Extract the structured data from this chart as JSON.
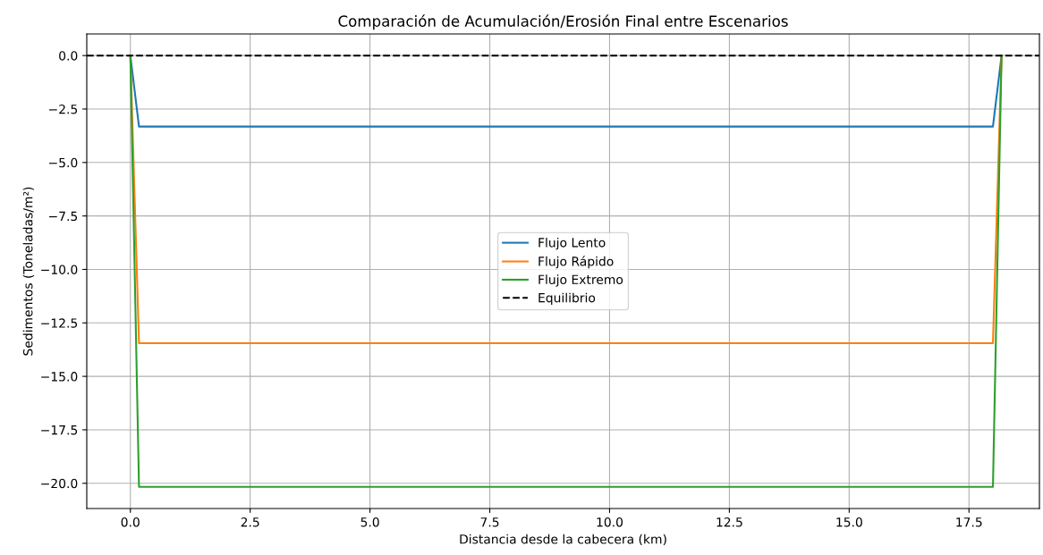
{
  "chart_data": {
    "type": "line",
    "title": "Comparación de Acumulación/Erosión Final entre Escenarios",
    "xlabel": "Distancia desde la cabecera (km)",
    "ylabel": "Sedimentos (Toneladas/m²)",
    "x": [
      0,
      0.18,
      18.0,
      18.18
    ],
    "series": [
      {
        "name": "Flujo Lento",
        "color": "#1f77b4",
        "values": [
          0,
          -3.32,
          -3.32,
          0
        ]
      },
      {
        "name": "Flujo Rápido",
        "color": "#ff7f0e",
        "values": [
          0,
          -13.45,
          -13.45,
          0
        ]
      },
      {
        "name": "Flujo Extremo",
        "color": "#2ca02c",
        "values": [
          0,
          -20.17,
          -20.17,
          0
        ]
      }
    ],
    "ref_lines": [
      {
        "axis": "y",
        "value": 0,
        "label": "Equilibrio",
        "color": "#000000",
        "line_style": "dashed"
      }
    ],
    "xlim": [
      -0.91,
      18.97
    ],
    "ylim": [
      -21.18,
      1.01
    ],
    "xticks": [
      {
        "value": 0,
        "label": "0.0"
      },
      2.5,
      {
        "value": 5,
        "label": "5.0"
      },
      7.5,
      {
        "value": 10,
        "label": "10.0"
      },
      12.5,
      {
        "value": 15,
        "label": "15.0"
      },
      17.5
    ],
    "yticks": [
      {
        "value": 0,
        "label": "0.0"
      },
      {
        "value": -2.5,
        "label": "−2.5"
      },
      {
        "value": -5,
        "label": "−5.0"
      },
      {
        "value": -7.5,
        "label": "−7.5"
      },
      {
        "value": -10,
        "label": "−10.0"
      },
      {
        "value": -12.5,
        "label": "−12.5"
      },
      {
        "value": -15,
        "label": "−15.0"
      },
      {
        "value": -17.5,
        "label": "−17.5"
      },
      {
        "value": -20,
        "label": "−20.0"
      }
    ],
    "grid": true,
    "legend": "center",
    "marker": "none",
    "line_style": "solid"
  }
}
